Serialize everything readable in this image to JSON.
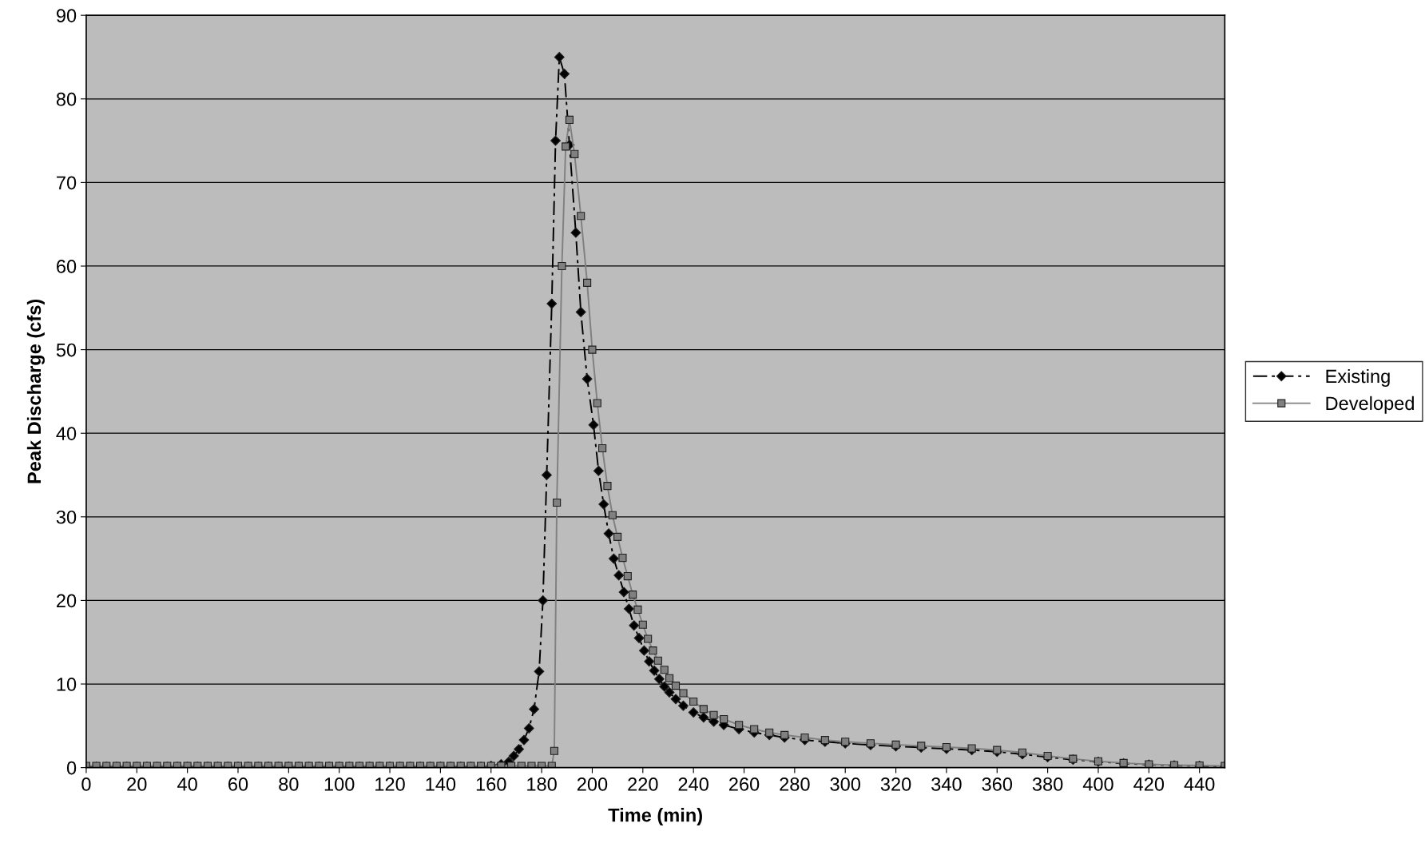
{
  "chart_data": {
    "type": "line",
    "xlabel": "Time (min)",
    "ylabel": "Peak Discharge (cfs)",
    "xlim": [
      0,
      450
    ],
    "xticks": [
      0,
      20,
      40,
      60,
      80,
      100,
      120,
      140,
      160,
      180,
      200,
      220,
      240,
      260,
      280,
      300,
      320,
      340,
      360,
      380,
      400,
      420,
      440
    ],
    "ylim": [
      0,
      90
    ],
    "yticks": [
      0,
      10,
      20,
      30,
      40,
      50,
      60,
      70,
      80,
      90
    ],
    "grid": "y",
    "legend": "right",
    "series": [
      {
        "name": "Existing",
        "color": "#000000",
        "marker": "diamond",
        "line_style": "dashed",
        "x": [
          0,
          4,
          8,
          12,
          16,
          20,
          24,
          28,
          32,
          36,
          40,
          44,
          48,
          52,
          56,
          60,
          64,
          68,
          72,
          76,
          80,
          84,
          88,
          92,
          96,
          100,
          104,
          108,
          112,
          116,
          120,
          124,
          128,
          132,
          136,
          140,
          144,
          148,
          152,
          156,
          160,
          164,
          167,
          169,
          171,
          173,
          175,
          177,
          179,
          180.5,
          182,
          184,
          185.5,
          187,
          189,
          191,
          193.5,
          195.5,
          198,
          200.5,
          202.5,
          204.5,
          206.5,
          208.5,
          210.5,
          212.5,
          214.5,
          216.5,
          218.5,
          220.5,
          222.5,
          224.5,
          226.5,
          228.5,
          230.5,
          233,
          236,
          240,
          244,
          248,
          252,
          258,
          264,
          270,
          276,
          284,
          292,
          300,
          310,
          320,
          330,
          340,
          350,
          360,
          370,
          380,
          390,
          400,
          410,
          420,
          430,
          440,
          450
        ],
        "values": [
          0.1,
          0.1,
          0.1,
          0.1,
          0.1,
          0.1,
          0.1,
          0.1,
          0.1,
          0.1,
          0.1,
          0.1,
          0.1,
          0.1,
          0.1,
          0.1,
          0.1,
          0.1,
          0.1,
          0.1,
          0.1,
          0.1,
          0.1,
          0.1,
          0.1,
          0.1,
          0.1,
          0.1,
          0.1,
          0.1,
          0.1,
          0.1,
          0.1,
          0.1,
          0.1,
          0.1,
          0.1,
          0.1,
          0.1,
          0.1,
          0.2,
          0.4,
          0.7,
          1.4,
          2.2,
          3.3,
          4.7,
          7.0,
          11.5,
          20,
          35,
          55.5,
          75,
          85,
          83,
          74.5,
          64,
          54.5,
          46.5,
          41,
          35.5,
          31.5,
          28,
          25,
          23,
          21,
          19,
          17,
          15.5,
          14,
          12.7,
          11.6,
          10.6,
          9.7,
          9.0,
          8.2,
          7.4,
          6.6,
          6.0,
          5.5,
          5.1,
          4.6,
          4.2,
          3.9,
          3.6,
          3.3,
          3.1,
          2.9,
          2.7,
          2.55,
          2.4,
          2.25,
          2.1,
          1.9,
          1.6,
          1.25,
          0.95,
          0.7,
          0.5,
          0.35,
          0.25,
          0.2,
          0.15
        ]
      },
      {
        "name": "Developed",
        "color": "#808080",
        "marker": "square",
        "line_style": "solid",
        "x": [
          0,
          4,
          8,
          12,
          16,
          20,
          24,
          28,
          32,
          36,
          40,
          44,
          48,
          52,
          56,
          60,
          64,
          68,
          72,
          76,
          80,
          84,
          88,
          92,
          96,
          100,
          104,
          108,
          112,
          116,
          120,
          124,
          128,
          132,
          136,
          140,
          144,
          148,
          152,
          156,
          160,
          164,
          168,
          172,
          176,
          180,
          184,
          185,
          186,
          188,
          189.5,
          191,
          193,
          195.5,
          198,
          200,
          202,
          204,
          206,
          208,
          210,
          212,
          214,
          216,
          218,
          220,
          222,
          224,
          226,
          228.5,
          230.5,
          233,
          236,
          240,
          244,
          248,
          252,
          258,
          264,
          270,
          276,
          284,
          292,
          300,
          310,
          320,
          330,
          340,
          350,
          360,
          370,
          380,
          390,
          400,
          410,
          420,
          430,
          440,
          450
        ],
        "values": [
          0.2,
          0.2,
          0.2,
          0.2,
          0.2,
          0.2,
          0.2,
          0.2,
          0.2,
          0.2,
          0.2,
          0.2,
          0.2,
          0.2,
          0.2,
          0.2,
          0.2,
          0.2,
          0.2,
          0.2,
          0.2,
          0.2,
          0.2,
          0.2,
          0.2,
          0.2,
          0.2,
          0.2,
          0.2,
          0.2,
          0.2,
          0.2,
          0.2,
          0.2,
          0.2,
          0.2,
          0.2,
          0.2,
          0.2,
          0.2,
          0.2,
          0.2,
          0.2,
          0.2,
          0.2,
          0.2,
          0.2,
          2.0,
          31.7,
          60,
          74.3,
          77.5,
          73.4,
          66,
          58,
          50,
          43.6,
          38.2,
          33.7,
          30.2,
          27.6,
          25.1,
          22.9,
          20.7,
          18.9,
          17.1,
          15.4,
          14,
          12.8,
          11.7,
          10.7,
          9.8,
          8.9,
          7.9,
          7.0,
          6.3,
          5.8,
          5.1,
          4.6,
          4.2,
          3.9,
          3.6,
          3.3,
          3.1,
          2.9,
          2.75,
          2.6,
          2.45,
          2.3,
          2.1,
          1.8,
          1.4,
          1.05,
          0.75,
          0.55,
          0.4,
          0.3,
          0.25,
          0.2
        ]
      }
    ]
  }
}
